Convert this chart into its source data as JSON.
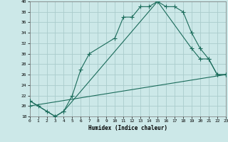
{
  "xlabel": "Humidex (Indice chaleur)",
  "bg_color": "#cce8e8",
  "grid_color": "#aacccc",
  "line_color": "#1a6b5a",
  "x_min": 0,
  "x_max": 23,
  "y_min": 18,
  "y_max": 40,
  "line1_x": [
    0,
    1,
    2,
    3,
    4,
    5,
    6,
    7,
    10,
    11,
    12,
    13,
    14,
    15,
    16,
    17,
    18,
    19,
    20,
    21,
    22,
    23
  ],
  "line1_y": [
    21,
    20,
    19,
    18,
    19,
    22,
    27,
    30,
    33,
    37,
    37,
    39,
    39,
    40,
    39,
    39,
    38,
    34,
    31,
    29,
    26,
    26
  ],
  "line2_x": [
    0,
    3,
    4,
    15,
    19,
    20,
    21,
    22,
    23
  ],
  "line2_y": [
    21,
    18,
    19,
    40,
    31,
    29,
    29,
    26,
    26
  ],
  "line3_x": [
    0,
    23
  ],
  "line3_y": [
    20,
    26
  ]
}
